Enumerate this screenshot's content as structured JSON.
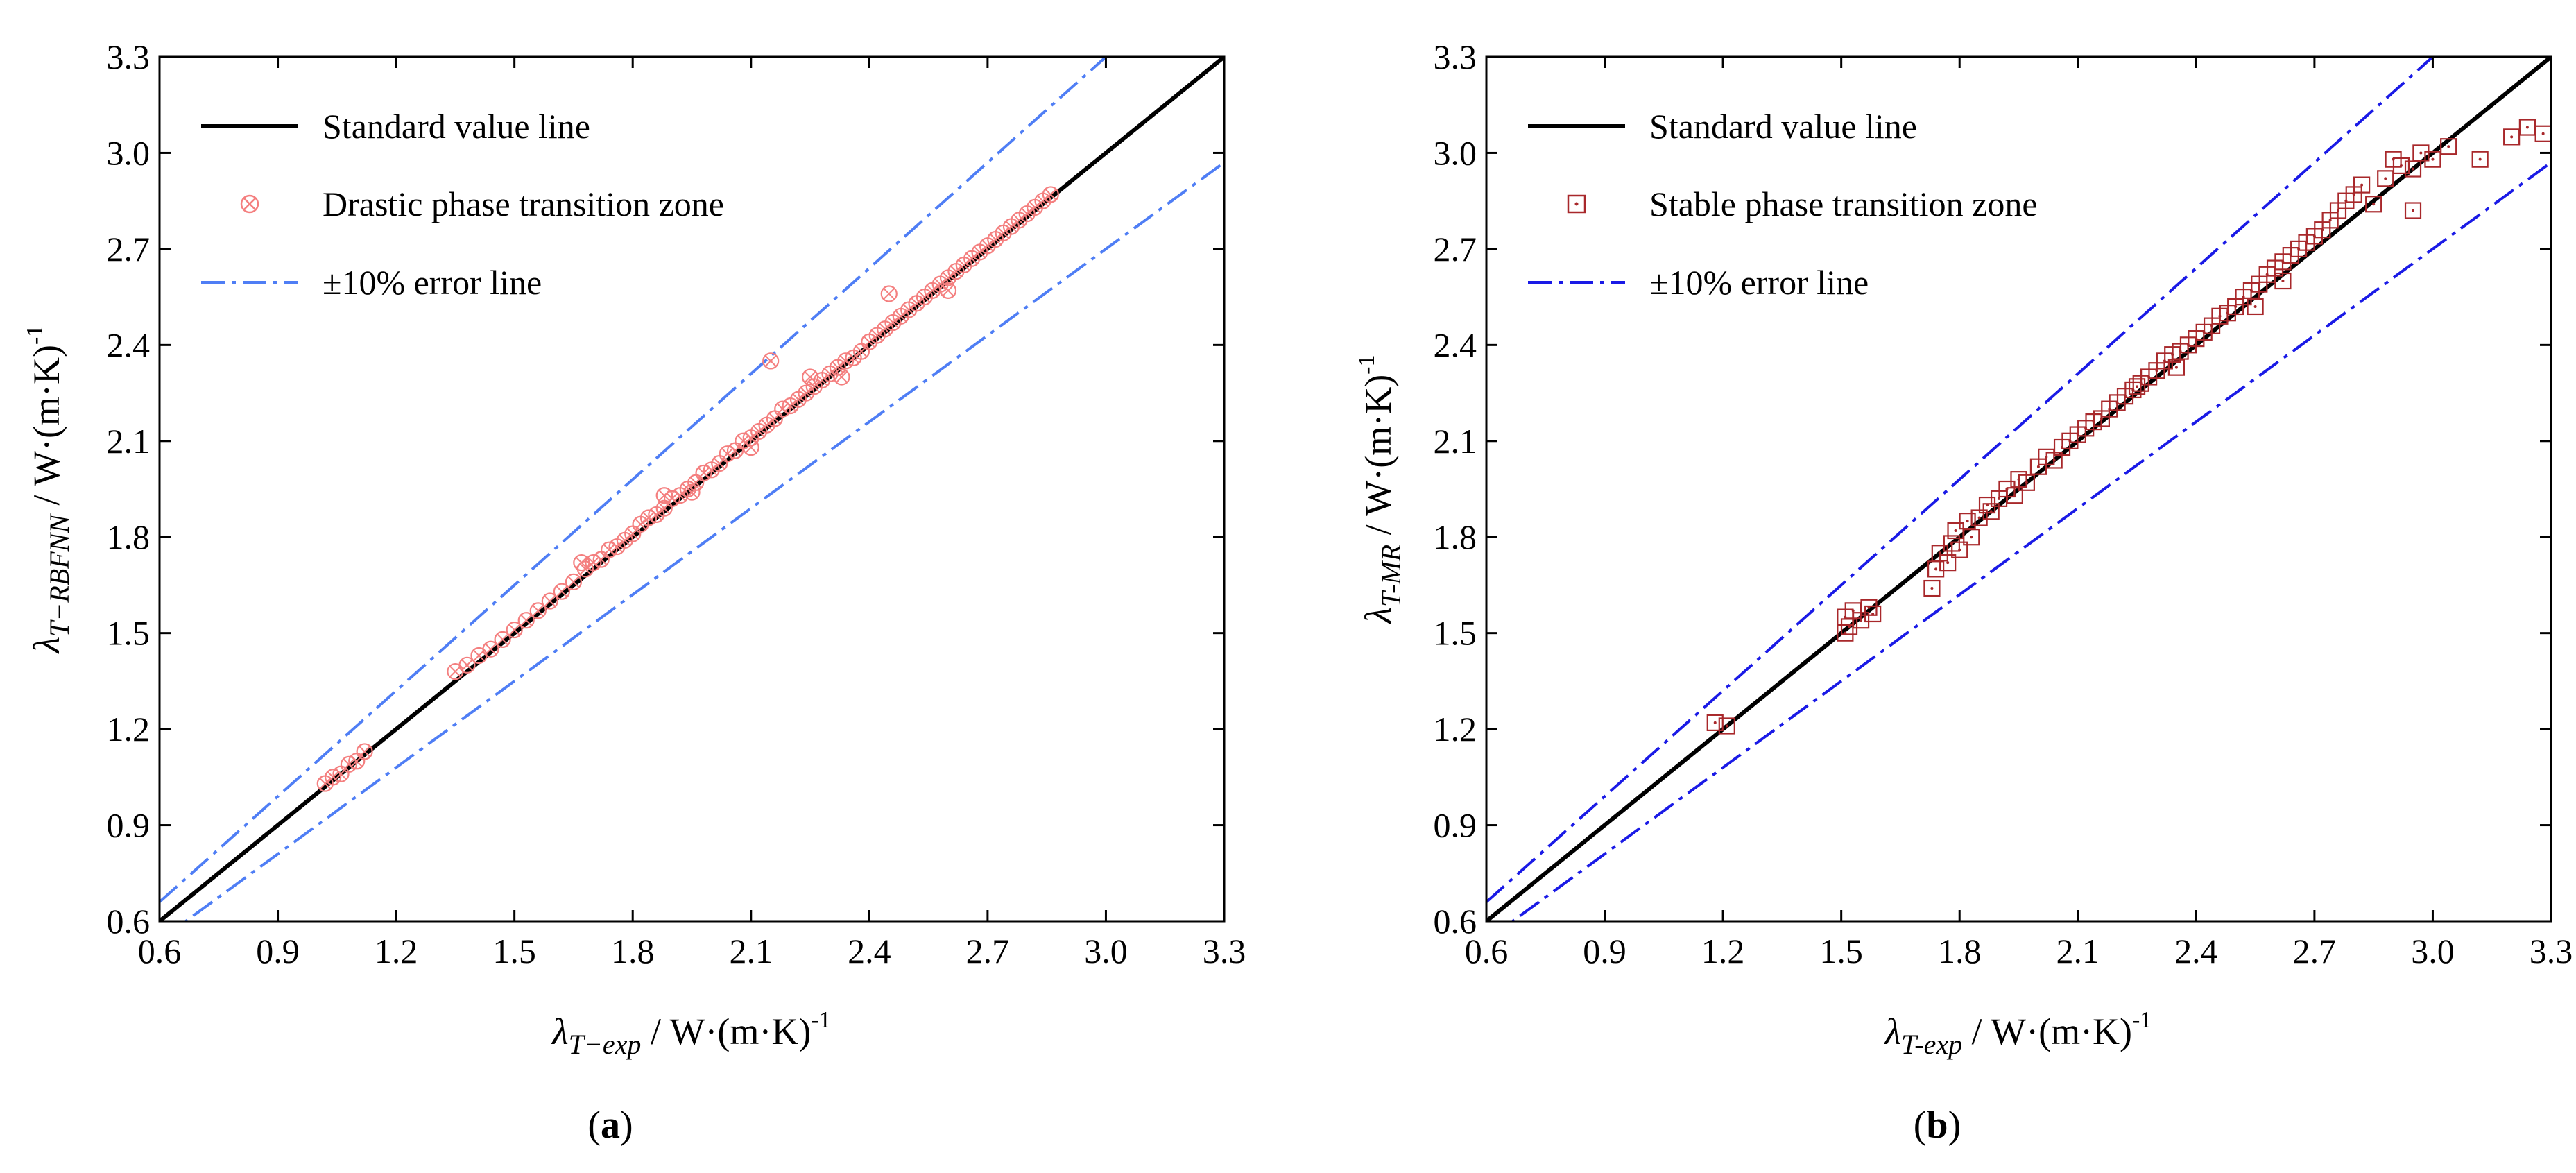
{
  "figure": {
    "panels": [
      {
        "caption_letter": "a",
        "x_symbol": "λ",
        "x_sub": "T−exp",
        "x_unit": " / W·(m·K)",
        "x_sup": "-1",
        "y_symbol": "λ",
        "y_sub": "T−RBFNN",
        "y_unit": " / W·(m·K)",
        "y_sup": "-1"
      },
      {
        "caption_letter": "b",
        "x_symbol": "λ",
        "x_sub": "T-exp",
        "x_unit": " / W·(m·K)",
        "x_sup": "-1",
        "y_symbol": "λ",
        "y_sub": "T-MR",
        "y_unit": " / W·(m·K)",
        "y_sup": "-1"
      }
    ]
  },
  "chart_data": [
    {
      "type": "scatter",
      "xlim": [
        0.6,
        3.3
      ],
      "ylim": [
        0.6,
        3.3
      ],
      "ticks": [
        "0.6",
        "0.9",
        "1.2",
        "1.5",
        "1.8",
        "2.1",
        "2.4",
        "2.7",
        "3.0",
        "3.3"
      ],
      "grid": false,
      "legend_position": "top-left",
      "colors": {
        "scatter": "#f47f7f",
        "error_line": "#4f7ef5",
        "standard_line": "#000000"
      },
      "lines": [
        {
          "name": "Standard value line",
          "style": "solid",
          "slope": 1.0
        },
        {
          "name": "±10% error line",
          "style": "dash-dot",
          "slopes": [
            1.1,
            0.9
          ]
        }
      ],
      "series": [
        {
          "name": "Drastic phase transition zone",
          "marker": "circle-x",
          "points": [
            [
              1.02,
              1.03
            ],
            [
              1.04,
              1.05
            ],
            [
              1.06,
              1.06
            ],
            [
              1.08,
              1.09
            ],
            [
              1.1,
              1.1
            ],
            [
              1.12,
              1.13
            ],
            [
              1.35,
              1.38
            ],
            [
              1.38,
              1.4
            ],
            [
              1.41,
              1.43
            ],
            [
              1.44,
              1.45
            ],
            [
              1.47,
              1.48
            ],
            [
              1.5,
              1.51
            ],
            [
              1.53,
              1.54
            ],
            [
              1.56,
              1.57
            ],
            [
              1.59,
              1.6
            ],
            [
              1.62,
              1.63
            ],
            [
              1.65,
              1.66
            ],
            [
              1.68,
              1.7
            ],
            [
              1.7,
              1.72
            ],
            [
              1.72,
              1.73
            ],
            [
              1.74,
              1.76
            ],
            [
              1.76,
              1.77
            ],
            [
              1.78,
              1.79
            ],
            [
              1.8,
              1.81
            ],
            [
              1.82,
              1.84
            ],
            [
              1.84,
              1.86
            ],
            [
              1.86,
              1.87
            ],
            [
              1.88,
              1.89
            ],
            [
              1.9,
              1.92
            ],
            [
              1.92,
              1.93
            ],
            [
              1.94,
              1.95
            ],
            [
              1.96,
              1.97
            ],
            [
              1.98,
              2.0
            ],
            [
              2.0,
              2.01
            ],
            [
              2.02,
              2.03
            ],
            [
              2.04,
              2.06
            ],
            [
              2.06,
              2.07
            ],
            [
              2.08,
              2.1
            ],
            [
              2.1,
              2.11
            ],
            [
              2.12,
              2.13
            ],
            [
              2.14,
              2.15
            ],
            [
              2.15,
              2.35
            ],
            [
              2.16,
              2.17
            ],
            [
              2.18,
              2.2
            ],
            [
              2.2,
              2.21
            ],
            [
              2.22,
              2.23
            ],
            [
              2.24,
              2.25
            ],
            [
              2.26,
              2.27
            ],
            [
              2.28,
              2.29
            ],
            [
              2.3,
              2.31
            ],
            [
              2.32,
              2.33
            ],
            [
              2.34,
              2.35
            ],
            [
              2.36,
              2.36
            ],
            [
              2.38,
              2.38
            ],
            [
              2.4,
              2.41
            ],
            [
              2.42,
              2.43
            ],
            [
              2.44,
              2.45
            ],
            [
              2.46,
              2.47
            ],
            [
              2.48,
              2.49
            ],
            [
              2.5,
              2.51
            ],
            [
              2.52,
              2.53
            ],
            [
              2.54,
              2.55
            ],
            [
              2.56,
              2.57
            ],
            [
              2.58,
              2.59
            ],
            [
              2.6,
              2.61
            ],
            [
              2.62,
              2.63
            ],
            [
              2.64,
              2.65
            ],
            [
              2.66,
              2.67
            ],
            [
              2.68,
              2.69
            ],
            [
              2.7,
              2.71
            ],
            [
              2.72,
              2.73
            ],
            [
              2.74,
              2.75
            ],
            [
              2.76,
              2.77
            ],
            [
              2.78,
              2.79
            ],
            [
              2.8,
              2.81
            ],
            [
              2.82,
              2.83
            ],
            [
              2.84,
              2.85
            ],
            [
              2.86,
              2.87
            ],
            [
              1.67,
              1.72
            ],
            [
              1.95,
              1.94
            ],
            [
              2.25,
              2.3
            ],
            [
              2.45,
              2.56
            ],
            [
              2.1,
              2.08
            ],
            [
              1.88,
              1.93
            ],
            [
              2.33,
              2.3
            ],
            [
              2.6,
              2.57
            ]
          ]
        }
      ]
    },
    {
      "type": "scatter",
      "xlim": [
        0.6,
        3.3
      ],
      "ylim": [
        0.6,
        3.3
      ],
      "ticks": [
        "0.6",
        "0.9",
        "1.2",
        "1.5",
        "1.8",
        "2.1",
        "2.4",
        "2.7",
        "3.0",
        "3.3"
      ],
      "grid": false,
      "legend_position": "top-left",
      "colors": {
        "scatter": "#a8282b",
        "error_line": "#1a1ae6",
        "standard_line": "#000000"
      },
      "lines": [
        {
          "name": "Standard value line",
          "style": "solid",
          "slope": 1.0
        },
        {
          "name": "±10% error line",
          "style": "dash-dot",
          "slopes": [
            1.1,
            0.9
          ]
        }
      ],
      "series": [
        {
          "name": "Stable phase transition zone",
          "marker": "square-dot",
          "points": [
            [
              1.18,
              1.22
            ],
            [
              1.21,
              1.21
            ],
            [
              1.51,
              1.5
            ],
            [
              1.51,
              1.55
            ],
            [
              1.52,
              1.52
            ],
            [
              1.53,
              1.57
            ],
            [
              1.55,
              1.54
            ],
            [
              1.57,
              1.58
            ],
            [
              1.58,
              1.56
            ],
            [
              1.73,
              1.64
            ],
            [
              1.74,
              1.7
            ],
            [
              1.75,
              1.75
            ],
            [
              1.77,
              1.72
            ],
            [
              1.78,
              1.78
            ],
            [
              1.79,
              1.82
            ],
            [
              1.8,
              1.76
            ],
            [
              1.82,
              1.85
            ],
            [
              1.83,
              1.8
            ],
            [
              1.85,
              1.86
            ],
            [
              1.87,
              1.9
            ],
            [
              1.88,
              1.88
            ],
            [
              1.9,
              1.92
            ],
            [
              1.92,
              1.95
            ],
            [
              1.94,
              1.93
            ],
            [
              1.95,
              1.98
            ],
            [
              1.97,
              1.97
            ],
            [
              2.0,
              2.02
            ],
            [
              2.02,
              2.05
            ],
            [
              2.04,
              2.04
            ],
            [
              2.06,
              2.08
            ],
            [
              2.08,
              2.1
            ],
            [
              2.1,
              2.12
            ],
            [
              2.12,
              2.14
            ],
            [
              2.14,
              2.16
            ],
            [
              2.16,
              2.17
            ],
            [
              2.18,
              2.2
            ],
            [
              2.2,
              2.22
            ],
            [
              2.22,
              2.24
            ],
            [
              2.24,
              2.26
            ],
            [
              2.26,
              2.28
            ],
            [
              2.28,
              2.3
            ],
            [
              2.3,
              2.32
            ],
            [
              2.32,
              2.35
            ],
            [
              2.34,
              2.37
            ],
            [
              2.36,
              2.38
            ],
            [
              2.38,
              2.4
            ],
            [
              2.4,
              2.42
            ],
            [
              2.42,
              2.44
            ],
            [
              2.44,
              2.46
            ],
            [
              2.46,
              2.49
            ],
            [
              2.48,
              2.5
            ],
            [
              2.5,
              2.52
            ],
            [
              2.52,
              2.55
            ],
            [
              2.54,
              2.57
            ],
            [
              2.56,
              2.59
            ],
            [
              2.58,
              2.62
            ],
            [
              2.6,
              2.64
            ],
            [
              2.62,
              2.66
            ],
            [
              2.64,
              2.68
            ],
            [
              2.66,
              2.7
            ],
            [
              2.68,
              2.72
            ],
            [
              2.7,
              2.74
            ],
            [
              2.72,
              2.76
            ],
            [
              2.74,
              2.79
            ],
            [
              2.76,
              2.82
            ],
            [
              2.78,
              2.85
            ],
            [
              2.8,
              2.87
            ],
            [
              2.82,
              2.9
            ],
            [
              2.85,
              2.84
            ],
            [
              2.88,
              2.92
            ],
            [
              2.9,
              2.98
            ],
            [
              2.92,
              2.96
            ],
            [
              2.95,
              2.82
            ],
            [
              2.95,
              2.95
            ],
            [
              2.97,
              3.0
            ],
            [
              3.0,
              2.98
            ],
            [
              3.04,
              3.02
            ],
            [
              3.12,
              2.98
            ],
            [
              3.2,
              3.05
            ],
            [
              3.24,
              3.08
            ],
            [
              3.28,
              3.06
            ],
            [
              2.25,
              2.27
            ],
            [
              2.35,
              2.33
            ],
            [
              2.55,
              2.52
            ],
            [
              2.62,
              2.6
            ]
          ]
        }
      ]
    }
  ]
}
